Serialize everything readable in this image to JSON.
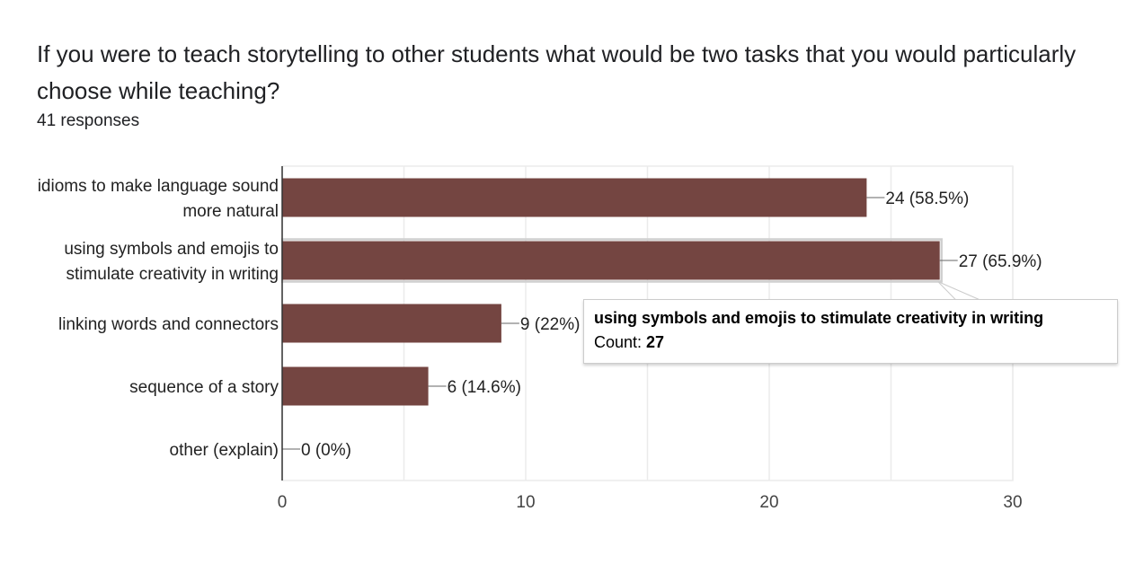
{
  "header": {
    "title": "If you were to teach storytelling to other students what would be two tasks that you would particularly choose while teaching?",
    "responses": "41 responses"
  },
  "chart_data": {
    "type": "bar",
    "orientation": "horizontal",
    "categories": [
      [
        "idioms to make language sound",
        "more natural"
      ],
      [
        "using symbols and emojis to",
        "stimulate creativity in writing"
      ],
      [
        "linking words and connectors"
      ],
      [
        "sequence of a story"
      ],
      [
        "other (explain)"
      ]
    ],
    "values": [
      24,
      27,
      9,
      6,
      0
    ],
    "data_labels": [
      "24 (58.5%)",
      "27 (65.9%)",
      "9 (22%)",
      "6 (14.6%)",
      "0 (0%)"
    ],
    "xlim": [
      0,
      30
    ],
    "xticks": [
      0,
      10,
      20,
      30
    ],
    "grid": true,
    "bar_color": "#744541",
    "highlighted_index": 1
  },
  "tooltip": {
    "title": "using symbols and emojis to stimulate creativity in writing",
    "count_label": "Count:",
    "count_value": "27"
  }
}
